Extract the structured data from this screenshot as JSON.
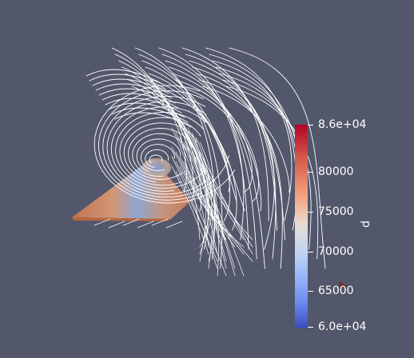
{
  "colors": {
    "background": "#52576b",
    "streamline": "#ffffff",
    "colormap_low": "#3b4cc0",
    "colormap_mid": "#dddcdc",
    "colormap_high": "#b40426"
  },
  "scalar_bar": {
    "title": "p",
    "colormap": "Cool to Warm",
    "range_min": 60000,
    "range_max": 86000,
    "labels": {
      "max": "8.6e+04",
      "t80000": "80000",
      "t75000": "75000",
      "t70000": "70000",
      "t65000": "65000",
      "min": "6.0e+04"
    }
  },
  "scene": {
    "objects": [
      "streamlines",
      "surface-plate",
      "orientation-marker"
    ],
    "orientation_marker_color": "#6e2a2a"
  }
}
